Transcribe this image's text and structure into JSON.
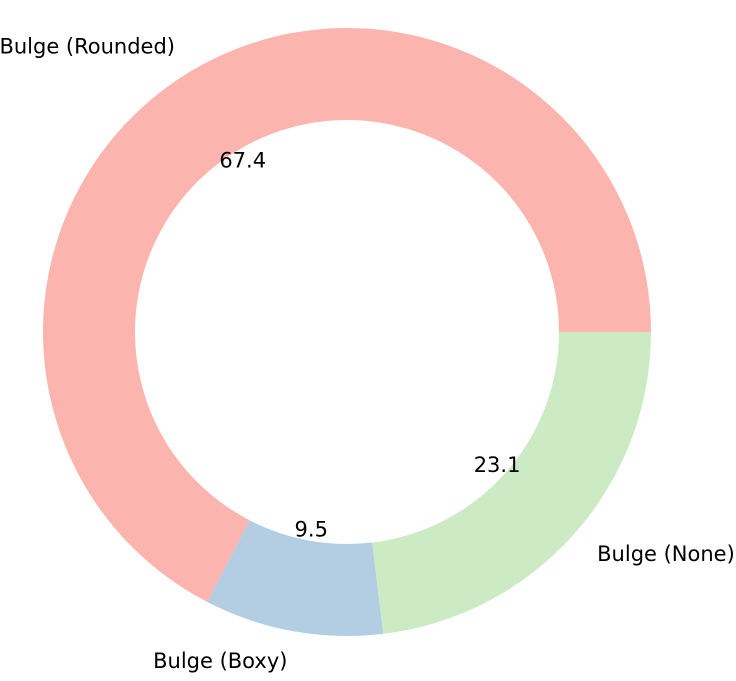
{
  "chart_data": {
    "type": "pie",
    "style": "donut",
    "categories": [
      "Bulge (Rounded)",
      "Bulge (Boxy)",
      "Bulge (None)"
    ],
    "values": [
      67.4,
      9.5,
      23.1
    ],
    "percent_labels": [
      "67.4",
      "9.5",
      "23.1"
    ],
    "colors": [
      "#fbb4ae",
      "#b3cde3",
      "#ccebc5"
    ],
    "start_angle_deg": 0,
    "direction": "counterclockwise",
    "title": "",
    "legend": "none"
  }
}
